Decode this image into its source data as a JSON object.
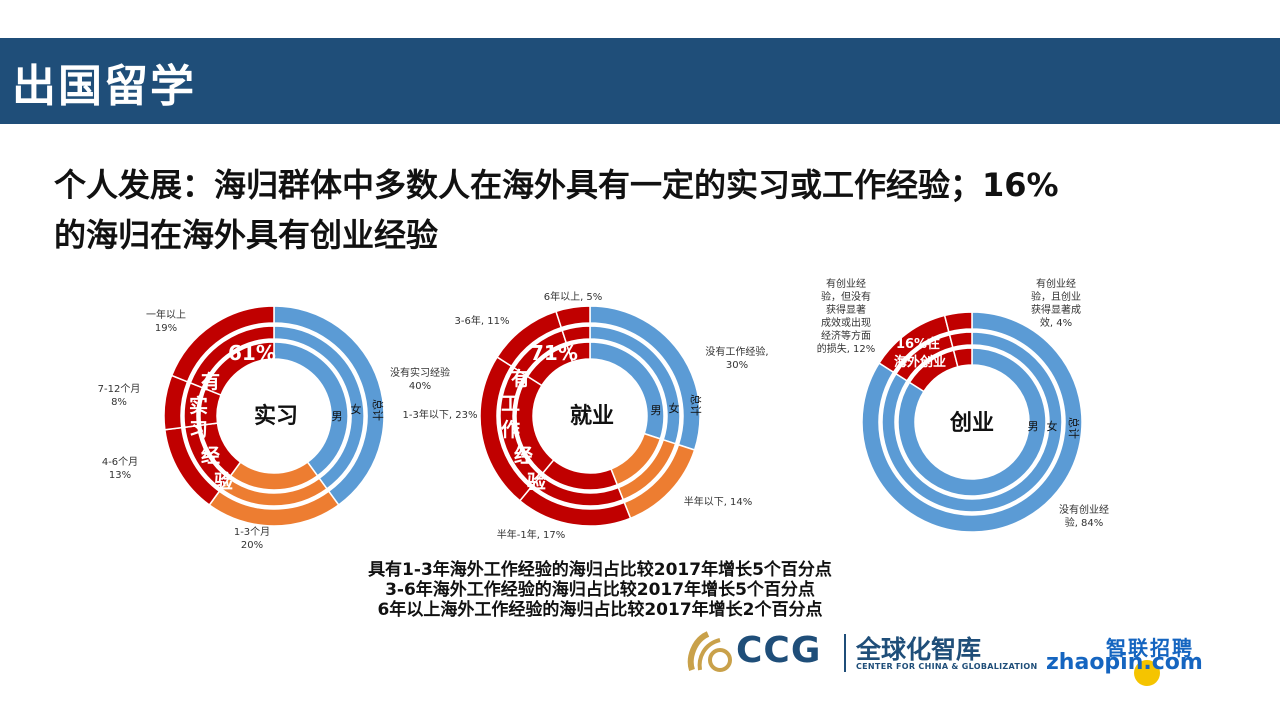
{
  "section_title": "出国留学",
  "headline": {
    "line1": "个人发展：海归群体中多数人在海外具有一定的实习或工作经验；16%",
    "line2": "的海归在海外具有创业经验"
  },
  "chart_data": [
    {
      "type": "donut",
      "center_label": "实习",
      "highlight_percent": "61%",
      "highlight_text": [
        "有",
        "实",
        "习",
        "经",
        "验"
      ],
      "ring_labels": [
        "男",
        "女",
        "总计"
      ],
      "slices": [
        {
          "label": "没有实习经验",
          "value": 40,
          "text": "没有实习经验\n40%"
        },
        {
          "label": "1-3个月",
          "value": 20,
          "text": "1-3个月\n20%"
        },
        {
          "label": "4-6个月",
          "value": 13,
          "text": "4-6个月\n13%"
        },
        {
          "label": "7-12个月",
          "value": 8,
          "text": "7-12个月\n8%"
        },
        {
          "label": "一年以上",
          "value": 19,
          "text": "一年以上\n19%"
        }
      ]
    },
    {
      "type": "donut",
      "center_label": "就业",
      "highlight_percent": "71%",
      "highlight_text": [
        "有",
        "工",
        "作",
        "经",
        "验"
      ],
      "ring_labels": [
        "男",
        "女",
        "总计"
      ],
      "slices": [
        {
          "label": "没有工作经验",
          "value": 30,
          "text": "没有工作经验,\n30%"
        },
        {
          "label": "半年以下",
          "value": 14,
          "text": "半年以下, 14%"
        },
        {
          "label": "半年-1年",
          "value": 17,
          "text": "半年-1年, 17%"
        },
        {
          "label": "1-3年以下",
          "value": 23,
          "text": "1-3年以下, 23%"
        },
        {
          "label": "3-6年",
          "value": 11,
          "text": "3-6年, 11%"
        },
        {
          "label": "6年以上",
          "value": 5,
          "text": "6年以上, 5%"
        }
      ]
    },
    {
      "type": "donut",
      "center_label": "创业",
      "highlight_text": [
        "16%在",
        "海外创业"
      ],
      "ring_labels": [
        "男",
        "女",
        "总计"
      ],
      "slices": [
        {
          "label": "没有创业经验",
          "value": 84,
          "text": "没有创业经\n验, 84%"
        },
        {
          "label": "有创业经验，但没有获得显著成效或出现经济等方面的损失",
          "value": 12,
          "text": "有创业经\n验，但没有\n获得显著\n成效或出现\n经济等方面\n的损失, 12%"
        },
        {
          "label": "有创业经验，且创业获得显著成效",
          "value": 4,
          "text": "有创业经\n验，且创业\n获得显著成\n效, 4%"
        }
      ]
    }
  ],
  "notes": [
    "具有1-3年海外工作经验的海归占比较2017年增长5个百分点",
    "3-6年海外工作经验的海归占比较2017年增长5个百分点",
    "6年以上海外工作经验的海归占比较2017年增长2个百分点"
  ],
  "logos": {
    "ccg": "CCG",
    "ccg_cn": "全球化智库",
    "ccg_en": "CENTER FOR CHINA & GLOBALIZATION",
    "zhaopin_cn": "智联招聘",
    "zhaopin_en": "zhaopin.com"
  },
  "colors": {
    "banner": "#1f4e79",
    "blue": "#5b9bd5",
    "red": "#c00000",
    "orange": "#ed7d31",
    "yellow": "#ffc000",
    "white": "#ffffff"
  }
}
